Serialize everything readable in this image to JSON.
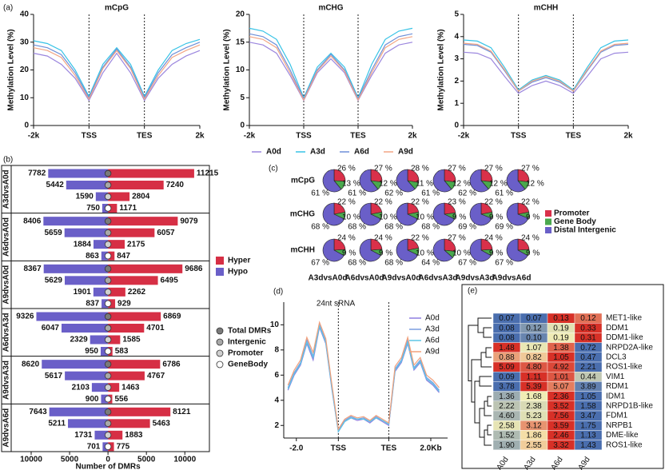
{
  "chart_data": [
    {
      "type": "line",
      "panel_label": "(a)",
      "title": "mCpG",
      "ylabel": "Methylation Level (%)",
      "x": [
        0,
        5,
        10,
        15,
        20,
        25,
        30,
        35,
        40,
        45,
        50,
        55,
        60
      ],
      "xlim": [
        0,
        60
      ],
      "xticks": [
        {
          "value": 0,
          "label": "-2k"
        },
        {
          "value": 20,
          "label": "TSS"
        },
        {
          "value": 40,
          "label": "TES"
        },
        {
          "value": 60,
          "label": "2k"
        }
      ],
      "ylim": [
        0,
        40
      ],
      "yticks": [
        0,
        10,
        20,
        30,
        40
      ],
      "series": [
        {
          "name": "A0d",
          "color": "#9b86de",
          "values": [
            26,
            25,
            22,
            17,
            9,
            19,
            26,
            19,
            9,
            17,
            22,
            25,
            27
          ]
        },
        {
          "name": "A3d",
          "color": "#37c3e6",
          "values": [
            30.5,
            29.5,
            27,
            20,
            10.5,
            22,
            28,
            22,
            10.5,
            20,
            27,
            29.5,
            31
          ]
        },
        {
          "name": "A6d",
          "color": "#6d8fd8",
          "values": [
            29,
            28,
            25.5,
            19,
            10,
            21,
            27.5,
            21,
            10,
            19,
            25.5,
            28,
            30
          ]
        },
        {
          "name": "A9d",
          "color": "#f2a584",
          "values": [
            28,
            27,
            24.5,
            18,
            9.5,
            20.5,
            27,
            20.5,
            9.5,
            18,
            24.5,
            27,
            29
          ]
        }
      ]
    },
    {
      "type": "line",
      "title": "mCHG",
      "ylabel": "Methylation Level (%)",
      "legend": "bottom",
      "x": [
        0,
        5,
        10,
        15,
        20,
        25,
        30,
        35,
        40,
        45,
        50,
        55,
        60
      ],
      "xlim": [
        0,
        60
      ],
      "xticks": [
        {
          "value": 0,
          "label": "-2k"
        },
        {
          "value": 20,
          "label": "TSS"
        },
        {
          "value": 40,
          "label": "TES"
        },
        {
          "value": 60,
          "label": "2k"
        }
      ],
      "ylim": [
        0,
        20
      ],
      "yticks": [
        0,
        5,
        10,
        15,
        20
      ],
      "series": [
        {
          "name": "A0d",
          "color": "#9b86de",
          "values": [
            15,
            14.5,
            13,
            9,
            4.5,
            9.5,
            12,
            9.5,
            4.5,
            9,
            13,
            14.5,
            15
          ]
        },
        {
          "name": "A3d",
          "color": "#37c3e6",
          "values": [
            17.5,
            17,
            15.5,
            11,
            5,
            10.5,
            13,
            10.5,
            5,
            11,
            15.5,
            17,
            17.5
          ]
        },
        {
          "name": "A6d",
          "color": "#6d8fd8",
          "values": [
            16.5,
            16,
            14.5,
            10,
            4.8,
            10,
            12.8,
            10,
            4.8,
            10,
            14.5,
            16,
            16.5
          ]
        },
        {
          "name": "A9d",
          "color": "#f2a584",
          "values": [
            16,
            15.5,
            14,
            9.5,
            4.6,
            9.8,
            12.5,
            9.8,
            4.6,
            9.5,
            14,
            15.5,
            16
          ]
        }
      ]
    },
    {
      "type": "line",
      "title": "mCHH",
      "ylabel": "Methylation Level (%)",
      "x": [
        0,
        5,
        10,
        15,
        20,
        25,
        30,
        35,
        40,
        45,
        50,
        55,
        60
      ],
      "xlim": [
        0,
        60
      ],
      "xticks": [
        {
          "value": 0,
          "label": "-2k"
        },
        {
          "value": 20,
          "label": "TSS"
        },
        {
          "value": 40,
          "label": "TES"
        },
        {
          "value": 60,
          "label": "2k"
        }
      ],
      "ylim": [
        0,
        5
      ],
      "yticks": [
        0,
        1,
        2,
        3,
        4,
        5
      ],
      "series": [
        {
          "name": "A0d",
          "color": "#9b86de",
          "values": [
            3.3,
            3.25,
            3.0,
            2.2,
            1.45,
            1.8,
            2.0,
            1.8,
            1.45,
            2.2,
            3.0,
            3.25,
            3.3
          ]
        },
        {
          "name": "A3d",
          "color": "#37c3e6",
          "values": [
            3.85,
            3.8,
            3.5,
            2.6,
            1.6,
            2.05,
            2.25,
            2.05,
            1.6,
            2.6,
            3.5,
            3.8,
            3.85
          ]
        },
        {
          "name": "A6d",
          "color": "#6d8fd8",
          "values": [
            3.65,
            3.6,
            3.3,
            2.45,
            1.55,
            1.95,
            2.15,
            1.95,
            1.55,
            2.45,
            3.3,
            3.6,
            3.65
          ]
        },
        {
          "name": "A9d",
          "color": "#f2a584",
          "values": [
            3.7,
            3.65,
            3.35,
            2.5,
            1.55,
            2.0,
            2.2,
            2.0,
            1.55,
            2.5,
            3.35,
            3.65,
            3.7
          ]
        }
      ]
    },
    {
      "type": "bar",
      "panel_label": "(b)",
      "xlabel": "Number of DMRs",
      "xlim": [
        -12600,
        13200
      ],
      "xticks": [
        {
          "value": -10000,
          "label": "10000"
        },
        {
          "value": -5000,
          "label": "5000"
        },
        0,
        5000,
        10000
      ],
      "groups": [
        "A3dvsA0d",
        "A6dvsA0d",
        "A9dvsA0d",
        "A6dvsA3d",
        "A9dvsA3d",
        "A9dvsA6d"
      ],
      "categories": [
        "Total DMRs",
        "Intergenic",
        "Promoter",
        "GeneBody"
      ],
      "category_colors": [
        "#7a7a7a",
        "#a8a8a8",
        "#cfcfcf",
        "#ffffff"
      ],
      "series": [
        {
          "name": "Hyper",
          "color": "#d62f45",
          "side": "right",
          "values": [
            [
              11215,
              7240,
              2804,
              1171
            ],
            [
              9079,
              6057,
              2175,
              847
            ],
            [
              9686,
              6495,
              2262,
              929
            ],
            [
              6869,
              4701,
              1585,
              583
            ],
            [
              6786,
              4767,
              1463,
              556
            ],
            [
              8121,
              5463,
              1883,
              775
            ]
          ]
        },
        {
          "name": "Hypo",
          "color": "#6a5fc8",
          "side": "left",
          "values": [
            [
              7782,
              5442,
              1590,
              750
            ],
            [
              8406,
              5659,
              1884,
              863
            ],
            [
              8367,
              5629,
              1901,
              837
            ],
            [
              9326,
              6047,
              2329,
              950
            ],
            [
              8620,
              5617,
              2103,
              900
            ],
            [
              7643,
              5211,
              1731,
              701
            ]
          ]
        }
      ]
    },
    {
      "type": "pie",
      "panel_label": "(c)",
      "rows": [
        "mCpG",
        "mCHG",
        "mCHH"
      ],
      "columns": [
        "A3dvsA0d",
        "A6dvsA0d",
        "A9dvsA0d",
        "A6dvsA3d",
        "A9dvsA3d",
        "A9dvsA6d"
      ],
      "series": [
        {
          "name": "Promoter",
          "color": "#d9304a",
          "values": [
            [
              26,
              27,
              28,
              27,
              27,
              27
            ],
            [
              22,
              22,
              22,
              23,
              22,
              22
            ],
            [
              24,
              24,
              22,
              27,
              24,
              24
            ]
          ],
          "value_labels": [
            [
              "26 %",
              "27 %",
              "28 %",
              "27 %",
              "27 %",
              "27 %"
            ],
            [
              "22 %",
              "22 %",
              "22 %",
              "23 %",
              "22 %",
              "22 %"
            ],
            [
              "24 %",
              "24 %",
              "22 %",
              "27 %",
              "24 %",
              "24 %"
            ]
          ]
        },
        {
          "name": "Gene Body",
          "color": "#4aa84e",
          "values": [
            [
              13,
              12,
              11,
              12,
              12,
              12
            ],
            [
              10,
              10,
              10,
              9,
              9,
              9
            ],
            [
              9,
              9,
              10,
              10,
              9,
              9
            ]
          ],
          "value_labels": [
            [
              "13 %",
              "12 %",
              "11 %",
              "12 %",
              "12 %",
              "12 %"
            ],
            [
              "10 %",
              "10 %",
              "10 %",
              "9 %",
              "9 %",
              "9 %"
            ],
            [
              "9 %",
              "9 %",
              "10 %",
              "10 %",
              "9 %",
              "9 %"
            ]
          ]
        },
        {
          "name": "Distal Intergenic",
          "color": "#6a5fc8",
          "values": [
            [
              61,
              61,
              62,
              61,
              62,
              61
            ],
            [
              68,
              68,
              68,
              68,
              69,
              69
            ],
            [
              67,
              68,
              68,
              64,
              67,
              67
            ]
          ],
          "value_labels": [
            [
              "61 %",
              "61 %",
              "62 %",
              "61 %",
              "62 %",
              "61 %"
            ],
            [
              "68 %",
              "68 %",
              "68 %",
              "68 %",
              "69 %",
              "69 %"
            ],
            [
              "67 %",
              "68 %",
              "68 %",
              "64 %",
              "67 %",
              "67 %"
            ]
          ]
        }
      ]
    },
    {
      "type": "line",
      "panel_label": "(d)",
      "title": "24nt sRNA",
      "legend": "upper right",
      "x": [
        -4,
        -1,
        2,
        5,
        8,
        11,
        14,
        17,
        20,
        23,
        26,
        29,
        32,
        35,
        38,
        41,
        44,
        47,
        50,
        53,
        56,
        59,
        62,
        65,
        68
      ],
      "xlim": [
        -6,
        72
      ],
      "xticks": [
        {
          "value": 0,
          "label": "-2.0"
        },
        {
          "value": 20,
          "label": "TSS"
        },
        {
          "value": 44,
          "label": "TES"
        },
        {
          "value": 64,
          "label": "2.0Kb"
        }
      ],
      "ylim": [
        1,
        11.8
      ],
      "yticks": [
        2,
        4,
        6,
        8,
        10
      ],
      "series": [
        {
          "name": "A0d",
          "color": "#8f7fe0",
          "values": [
            4.8,
            6.0,
            6.8,
            8.5,
            7.2,
            9.8,
            8.5,
            4.8,
            1.5,
            2.3,
            2.6,
            2.4,
            2.5,
            2.2,
            2.6,
            2.3,
            2.0,
            6.3,
            7.0,
            8.5,
            6.4,
            7.0,
            5.6,
            5.2,
            4.6
          ]
        },
        {
          "name": "A3d",
          "color": "#7b9ee0",
          "values": [
            5.0,
            6.2,
            7.0,
            8.8,
            7.5,
            10.0,
            8.7,
            5.0,
            1.6,
            2.4,
            2.7,
            2.5,
            2.6,
            2.3,
            2.7,
            2.4,
            2.1,
            6.5,
            7.2,
            8.8,
            6.6,
            7.2,
            5.8,
            5.4,
            4.8
          ]
        },
        {
          "name": "A6d",
          "color": "#5dc6e6",
          "values": [
            4.9,
            6.1,
            6.9,
            8.6,
            7.4,
            9.9,
            8.6,
            4.9,
            1.5,
            2.3,
            2.6,
            2.5,
            2.5,
            2.3,
            2.6,
            2.4,
            2.1,
            6.4,
            7.1,
            8.6,
            6.5,
            7.1,
            5.7,
            5.3,
            4.7
          ]
        },
        {
          "name": "A9d",
          "color": "#f2a07b",
          "values": [
            5.2,
            6.4,
            7.2,
            9.0,
            7.8,
            10.2,
            8.9,
            5.2,
            1.7,
            2.5,
            2.8,
            2.6,
            2.7,
            2.4,
            2.8,
            2.5,
            2.2,
            6.7,
            7.4,
            9.0,
            6.8,
            7.4,
            6.0,
            5.6,
            5.0
          ]
        }
      ]
    },
    {
      "type": "heatmap",
      "panel_label": "(e)",
      "columns": [
        "A0d",
        "A3d",
        "A6d",
        "A9d"
      ],
      "rows": [
        "MET1-like",
        "DDM1",
        "DDM1-like",
        "NRPD2A-like",
        "DCL3",
        "ROS1-like",
        "VIM1",
        "RDM1",
        "IDM1",
        "NRPD1B-like",
        "FDM1",
        "NRPB1",
        "DME-like",
        "ROS1-like"
      ],
      "colors": [
        "#4a6eae",
        "#f7f1b5",
        "#d73027"
      ],
      "values": [
        [
          0.07,
          0.07,
          0.13,
          0.12
        ],
        [
          0.08,
          0.12,
          0.19,
          0.33
        ],
        [
          0.08,
          0.1,
          0.19,
          0.31
        ],
        [
          1.48,
          1.07,
          1.38,
          0.72
        ],
        [
          0.88,
          0.82,
          1.05,
          0.47
        ],
        [
          5.09,
          4.8,
          4.92,
          2.21
        ],
        [
          0.09,
          1.11,
          1.01,
          0.44
        ],
        [
          3.78,
          5.39,
          5.07,
          3.89
        ],
        [
          1.36,
          1.68,
          2.36,
          1.05
        ],
        [
          2.22,
          2.38,
          3.52,
          1.58
        ],
        [
          4.6,
          5.23,
          7.56,
          3.47
        ],
        [
          2.58,
          3.12,
          3.59,
          1.75
        ],
        [
          1.52,
          1.86,
          2.46,
          1.13
        ],
        [
          1.9,
          2.55,
          3.32,
          1.43
        ]
      ],
      "value_labels": [
        [
          "0.07",
          "0.07",
          "0.13",
          "0.12"
        ],
        [
          "0.08",
          "0.12",
          "0.19",
          "0.33"
        ],
        [
          "0.08",
          "0.10",
          "0.19",
          "0.31"
        ],
        [
          "1.48",
          "1.07",
          "1.38",
          "0.72"
        ],
        [
          "0.88",
          "0.82",
          "1.05",
          "0.47"
        ],
        [
          "5.09",
          "4.80",
          "4.92",
          "2.21"
        ],
        [
          "0.09",
          "1.11",
          "1.01",
          "0.44"
        ],
        [
          "3.78",
          "5.39",
          "5.07",
          "3.89"
        ],
        [
          "1.36",
          "1.68",
          "2.36",
          "1.05"
        ],
        [
          "2.22",
          "2.38",
          "3.52",
          "1.58"
        ],
        [
          "4.60",
          "5.23",
          "7.56",
          "3.47"
        ],
        [
          "2.58",
          "3.12",
          "3.59",
          "1.75"
        ],
        [
          "1.52",
          "1.86",
          "2.46",
          "1.13"
        ],
        [
          "1.90",
          "2.55",
          "3.32",
          "1.43"
        ]
      ]
    }
  ]
}
